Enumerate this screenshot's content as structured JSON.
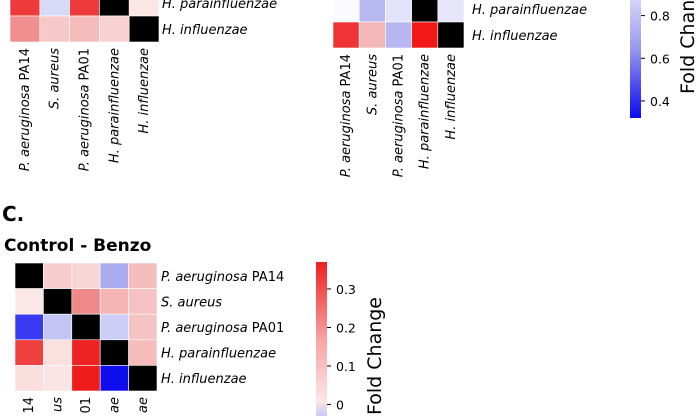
{
  "chart_data": [
    {
      "type": "heatmap",
      "title": "",
      "rows": [
        [
          {
            "pre": "",
            "it": "H. parainfluenzae",
            "post": ""
          }
        ],
        [
          {
            "pre": "",
            "it": "H. influenzae",
            "post": ""
          }
        ]
      ],
      "columns": [
        [
          {
            "pre": "",
            "it": "P. aeruginosa",
            "post": " PA14"
          }
        ],
        [
          {
            "pre": "",
            "it": "S. aureus",
            "post": ""
          }
        ],
        [
          {
            "pre": "",
            "it": "P. aeruginosa",
            "post": " PA01"
          }
        ],
        [
          {
            "pre": "",
            "it": "H. parainfluenzae",
            "post": ""
          }
        ],
        [
          {
            "pre": "",
            "it": "H. influenzae",
            "post": ""
          }
        ]
      ],
      "cells": [
        [
          "#ee3a3a",
          "#d8d8f7",
          "#ee3a3a",
          "#000000",
          "#fbe6e6"
        ],
        [
          "#f08f8f",
          "#f7c8c8",
          "#f6bcbc",
          "#f8d2d2",
          "#000000"
        ]
      ]
    },
    {
      "type": "heatmap",
      "title": "",
      "rows": [
        [
          {
            "pre": "",
            "it": "H. parainfluenzae",
            "post": ""
          }
        ],
        [
          {
            "pre": "",
            "it": "H. influenzae",
            "post": ""
          }
        ]
      ],
      "columns": [
        [
          {
            "pre": "",
            "it": "P. aeruginosa",
            "post": " PA14"
          }
        ],
        [
          {
            "pre": "",
            "it": "S. aureus",
            "post": ""
          }
        ],
        [
          {
            "pre": "",
            "it": "P. aeruginosa",
            "post": " PA01"
          }
        ],
        [
          {
            "pre": "",
            "it": "H. parainfluenzae",
            "post": ""
          }
        ],
        [
          {
            "pre": "",
            "it": "H. influenzae",
            "post": ""
          }
        ]
      ],
      "cells": [
        [
          "#fafaff",
          "#b9b9f2",
          "#e3e3fb",
          "#000000",
          "#e6e6fb"
        ],
        [
          "#ee3434",
          "#f4b8b8",
          "#b7b7f2",
          "#f11818",
          "#000000"
        ]
      ],
      "colorbar": {
        "title": "Fold Change",
        "ticks": [
          "0.8",
          "0.6",
          "0.4"
        ],
        "tick_values": [
          0.8,
          0.6,
          0.4
        ],
        "range_shown": [
          0.32,
          0.92
        ]
      }
    },
    {
      "type": "heatmap",
      "panel": "C.",
      "title": "Control - Benzo",
      "rows": [
        [
          {
            "pre": "",
            "it": "P. aeruginosa",
            "post": " PA14"
          }
        ],
        [
          {
            "pre": "",
            "it": "S. aureus",
            "post": ""
          }
        ],
        [
          {
            "pre": "",
            "it": "P. aeruginosa",
            "post": " PA01"
          }
        ],
        [
          {
            "pre": "",
            "it": "H. parainfluenzae",
            "post": ""
          }
        ],
        [
          {
            "pre": "",
            "it": "H. influenzae",
            "post": ""
          }
        ]
      ],
      "columns": [
        [
          {
            "pre": "",
            "it": "",
            "post": "14"
          }
        ],
        [
          {
            "pre": "",
            "it": "us",
            "post": ""
          }
        ],
        [
          {
            "pre": "",
            "it": "",
            "post": "01"
          }
        ],
        [
          {
            "pre": "",
            "it": "ae",
            "post": ""
          }
        ],
        [
          {
            "pre": "",
            "it": "ae",
            "post": ""
          }
        ]
      ],
      "cells": [
        [
          "#000000",
          "#f7cccc",
          "#f9d6d6",
          "#aaaaf0",
          "#f5bcbc"
        ],
        [
          "#fde8e8",
          "#000000",
          "#f08a8a",
          "#f5b5b5",
          "#f6c2c2"
        ],
        [
          "#3a3af2",
          "#c4c4f5",
          "#000000",
          "#cdcdf7",
          "#f6c3c3"
        ],
        [
          "#ef4040",
          "#fbe0e0",
          "#ee2222",
          "#000000",
          "#f6bcbc"
        ],
        [
          "#fbdede",
          "#fbe4e4",
          "#ee1c1c",
          "#0d0dee",
          "#000000"
        ]
      ],
      "colorbar": {
        "title": "Fold Change",
        "ticks": [
          "0.3",
          "0.2",
          "0.1",
          "0"
        ],
        "tick_values": [
          0.3,
          0.2,
          0.1,
          0
        ],
        "range_shown": [
          -0.03,
          0.37
        ]
      }
    }
  ]
}
